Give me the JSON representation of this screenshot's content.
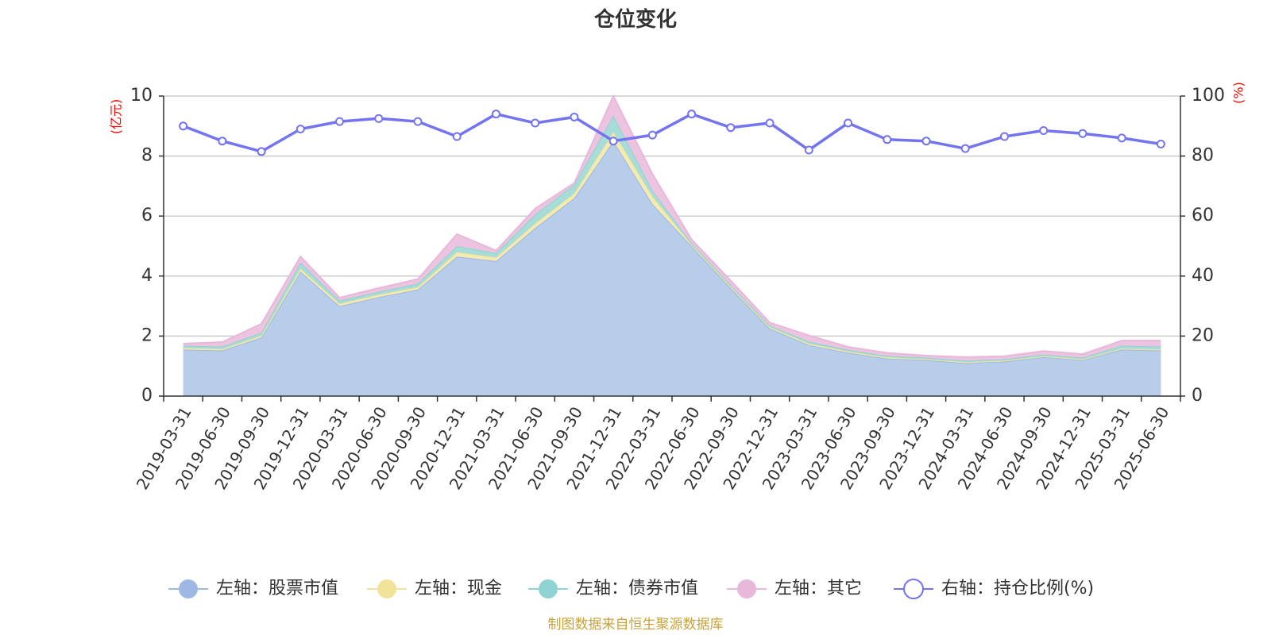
{
  "chart_data": {
    "type": "area",
    "title": "仓位变化",
    "left_unit": "(亿元)",
    "right_unit": "(%)",
    "ylim_left": [
      0,
      10
    ],
    "ylim_right": [
      0,
      100
    ],
    "yticks_left": [
      "0",
      "2",
      "4",
      "6",
      "8",
      "10"
    ],
    "yticks_right": [
      "0",
      "20",
      "40",
      "60",
      "80",
      "100"
    ],
    "grid": true,
    "legend_placement": "bottom",
    "categories": [
      "2019-03-31",
      "2019-06-30",
      "2019-09-30",
      "2019-12-31",
      "2020-03-31",
      "2020-06-30",
      "2020-09-30",
      "2020-12-31",
      "2021-03-31",
      "2021-06-30",
      "2021-09-30",
      "2021-12-31",
      "2022-03-31",
      "2022-06-30",
      "2022-09-30",
      "2022-12-31",
      "2023-03-31",
      "2023-06-30",
      "2023-09-30",
      "2023-12-31",
      "2024-03-31",
      "2024-06-30",
      "2024-09-30",
      "2024-12-31",
      "2025-03-31",
      "2025-06-30"
    ],
    "series": [
      {
        "name": "左轴：股票市值",
        "axis": "left",
        "stack": true,
        "color": "#9cb8e3",
        "fill": "#b8cdea",
        "values": [
          1.55,
          1.52,
          1.95,
          4.15,
          3.0,
          3.3,
          3.55,
          4.65,
          4.5,
          5.6,
          6.6,
          8.5,
          6.4,
          5.0,
          3.6,
          2.25,
          1.7,
          1.45,
          1.25,
          1.2,
          1.1,
          1.15,
          1.3,
          1.2,
          1.55,
          1.52
        ]
      },
      {
        "name": "左轴：现金",
        "axis": "left",
        "stack": true,
        "color": "#f2e39a",
        "fill": "#f5eab0",
        "values": [
          0.05,
          0.05,
          0.06,
          0.1,
          0.08,
          0.08,
          0.08,
          0.15,
          0.12,
          0.15,
          0.15,
          0.3,
          0.25,
          0.05,
          0.05,
          0.05,
          0.05,
          0.04,
          0.04,
          0.03,
          0.03,
          0.03,
          0.03,
          0.03,
          0.03,
          0.03
        ]
      },
      {
        "name": "左轴：债券市值",
        "axis": "left",
        "stack": true,
        "color": "#8fd3d3",
        "fill": "#a7dcd8",
        "values": [
          0.08,
          0.08,
          0.1,
          0.2,
          0.1,
          0.1,
          0.12,
          0.2,
          0.15,
          0.3,
          0.3,
          0.55,
          0.2,
          0.05,
          0.05,
          0.05,
          0.07,
          0.05,
          0.05,
          0.05,
          0.05,
          0.05,
          0.05,
          0.05,
          0.1,
          0.1
        ]
      },
      {
        "name": "左轴：其它",
        "axis": "left",
        "stack": true,
        "color": "#e8b8da",
        "fill": "#ecc4df",
        "values": [
          0.07,
          0.15,
          0.3,
          0.2,
          0.1,
          0.12,
          0.15,
          0.4,
          0.08,
          0.2,
          0.05,
          0.65,
          0.55,
          0.12,
          0.15,
          0.1,
          0.2,
          0.1,
          0.1,
          0.07,
          0.12,
          0.1,
          0.12,
          0.12,
          0.17,
          0.2
        ]
      },
      {
        "name": "右轴：持仓比例(%)",
        "axis": "right",
        "stack": false,
        "color": "#7474f0",
        "values": [
          90,
          85,
          81.5,
          89,
          91.5,
          92.5,
          91.5,
          86.5,
          94,
          91,
          93,
          85,
          87,
          94,
          89.5,
          91,
          82,
          91,
          85.5,
          85,
          82.5,
          86.5,
          88.5,
          87.5,
          86,
          84
        ]
      }
    ],
    "source": "制图数据来自恒生聚源数据库"
  }
}
